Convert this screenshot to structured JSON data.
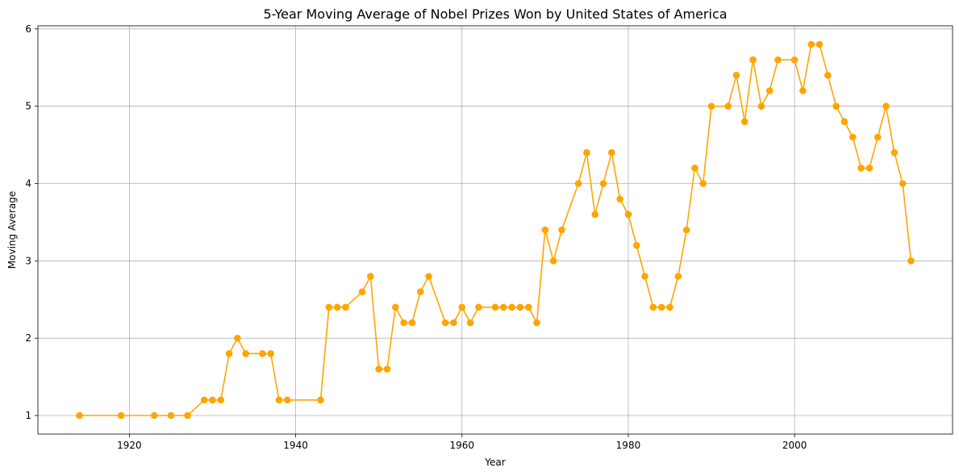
{
  "chart_data": {
    "type": "line",
    "title": "5-Year Moving Average of Nobel Prizes Won by United States of America",
    "xlabel": "Year",
    "ylabel": "Moving Average",
    "xlim": [
      1909,
      2019
    ],
    "ylim": [
      0.76,
      6.04
    ],
    "xticks": [
      1920,
      1940,
      1960,
      1980,
      2000
    ],
    "yticks": [
      1,
      2,
      3,
      4,
      5,
      6
    ],
    "grid": true,
    "series": [
      {
        "color": "#ffa500",
        "marker": "circle",
        "x": [
          1914,
          1919,
          1923,
          1925,
          1927,
          1929,
          1930,
          1931,
          1932,
          1933,
          1934,
          1936,
          1937,
          1938,
          1939,
          1943,
          1944,
          1945,
          1946,
          1948,
          1949,
          1950,
          1951,
          1952,
          1953,
          1954,
          1955,
          1956,
          1958,
          1959,
          1960,
          1961,
          1962,
          1964,
          1965,
          1966,
          1967,
          1968,
          1969,
          1970,
          1971,
          1972,
          1974,
          1975,
          1976,
          1977,
          1978,
          1979,
          1980,
          1981,
          1982,
          1983,
          1984,
          1985,
          1986,
          1987,
          1988,
          1989,
          1990,
          1992,
          1993,
          1994,
          1995,
          1996,
          1997,
          1998,
          2000,
          2001,
          2002,
          2003,
          2004,
          2005,
          2006,
          2007,
          2008,
          2009,
          2010,
          2011,
          2012,
          2013,
          2014
        ],
        "y": [
          1.0,
          1.0,
          1.0,
          1.0,
          1.0,
          1.2,
          1.2,
          1.2,
          1.8,
          2.0,
          1.8,
          1.8,
          1.8,
          1.2,
          1.2,
          1.2,
          2.4,
          2.4,
          2.4,
          2.6,
          2.8,
          1.6,
          1.6,
          2.4,
          2.2,
          2.2,
          2.6,
          2.8,
          2.2,
          2.2,
          2.4,
          2.2,
          2.4,
          2.4,
          2.4,
          2.4,
          2.4,
          2.4,
          2.2,
          3.4,
          3.0,
          3.4,
          4.0,
          4.4,
          3.6,
          4.0,
          4.4,
          3.8,
          3.6,
          3.2,
          2.8,
          2.4,
          2.4,
          2.4,
          2.8,
          3.4,
          4.2,
          4.0,
          5.0,
          5.0,
          5.4,
          4.8,
          5.6,
          5.0,
          5.2,
          5.6,
          5.6,
          5.2,
          5.8,
          5.8,
          5.4,
          5.0,
          4.8,
          4.6,
          4.2,
          4.2,
          4.6,
          5.0,
          4.4,
          4.0,
          3.0
        ]
      }
    ]
  }
}
